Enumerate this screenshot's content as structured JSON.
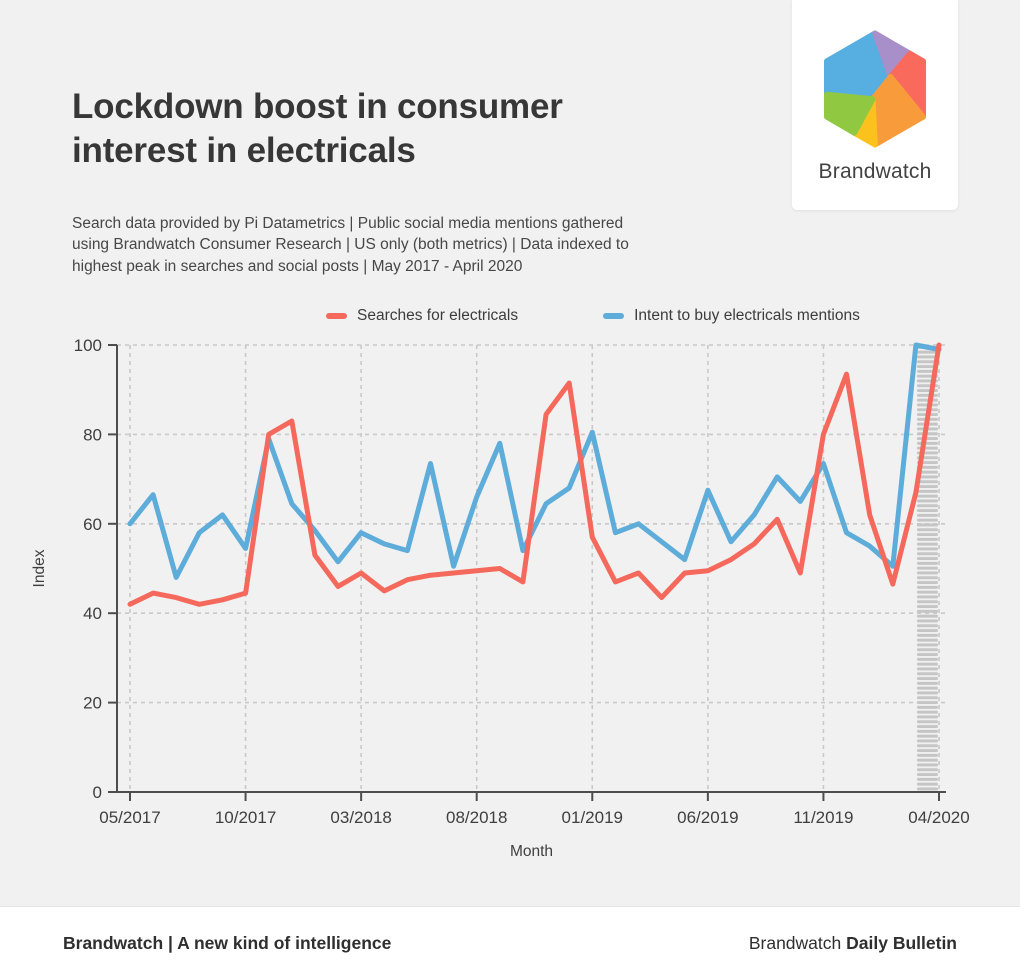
{
  "header": {
    "title_lines": [
      "Lockdown boost in consumer",
      "interest in electricals"
    ],
    "subtitle_lines": [
      "Search data provided by Pi Datametrics | Public social media mentions gathered",
      "using Brandwatch Consumer Research | US only (both metrics) | Data indexed to",
      "highest peak in searches and social posts | May 2017 - April 2020"
    ]
  },
  "logo": {
    "text": "Brandwatch",
    "colors": {
      "blue": "#56aee1",
      "purple": "#a98fc9",
      "coral": "#f9695c",
      "orange": "#f89b3b",
      "yellow": "#fbc21d",
      "green": "#90c841"
    }
  },
  "chart_data": {
    "type": "line",
    "title": "Lockdown boost in consumer interest in electricals",
    "xlabel": "Month",
    "ylabel": "Index",
    "ylim": [
      0,
      100
    ],
    "yticks": [
      0,
      20,
      40,
      60,
      80,
      100
    ],
    "grid": true,
    "legend_position": "top",
    "x": [
      "05/2017",
      "06/2017",
      "07/2017",
      "08/2017",
      "09/2017",
      "10/2017",
      "11/2017",
      "12/2017",
      "01/2018",
      "02/2018",
      "03/2018",
      "04/2018",
      "05/2018",
      "06/2018",
      "07/2018",
      "08/2018",
      "09/2018",
      "10/2018",
      "11/2018",
      "12/2018",
      "01/2019",
      "02/2019",
      "03/2019",
      "04/2019",
      "05/2019",
      "06/2019",
      "07/2019",
      "08/2019",
      "09/2019",
      "10/2019",
      "11/2019",
      "12/2019",
      "01/2020",
      "02/2020",
      "03/2020",
      "04/2020"
    ],
    "xticks": [
      "05/2017",
      "10/2017",
      "03/2018",
      "08/2018",
      "01/2019",
      "06/2019",
      "11/2019",
      "04/2020"
    ],
    "series": [
      {
        "name": "Searches for electricals",
        "color": "#f4695b",
        "values": [
          42,
          44.5,
          43.5,
          42,
          43,
          44.5,
          80,
          83,
          53,
          46,
          49,
          45,
          47.5,
          48.5,
          49,
          49.5,
          50,
          47,
          84.5,
          91.5,
          57,
          47,
          49,
          43.5,
          49,
          49.5,
          52,
          55.5,
          61,
          49,
          80,
          93.5,
          62,
          46.5,
          67,
          100
        ]
      },
      {
        "name": "Intent to buy electricals mentions",
        "color": "#5dacda",
        "values": [
          60,
          66.5,
          48,
          58,
          62,
          54.5,
          79,
          64.5,
          58.5,
          51.5,
          58,
          55.5,
          54,
          73.5,
          50.5,
          66,
          78,
          54,
          64.5,
          68,
          80.5,
          58,
          60,
          56,
          52,
          67.5,
          56,
          62,
          70.5,
          65,
          73.5,
          58,
          55,
          50.5,
          100,
          99
        ]
      }
    ],
    "highlight_band": {
      "from": "03/2020",
      "to": "04/2020",
      "style": "gray-stripes",
      "color": "#c5c5c5"
    }
  },
  "footer": {
    "left": "Brandwatch | A new kind of intelligence",
    "right_regular": "Brandwatch",
    "right_bold": "Daily Bulletin"
  },
  "colors": {
    "background": "#f1f1f1",
    "card": "#ffffff"
  }
}
